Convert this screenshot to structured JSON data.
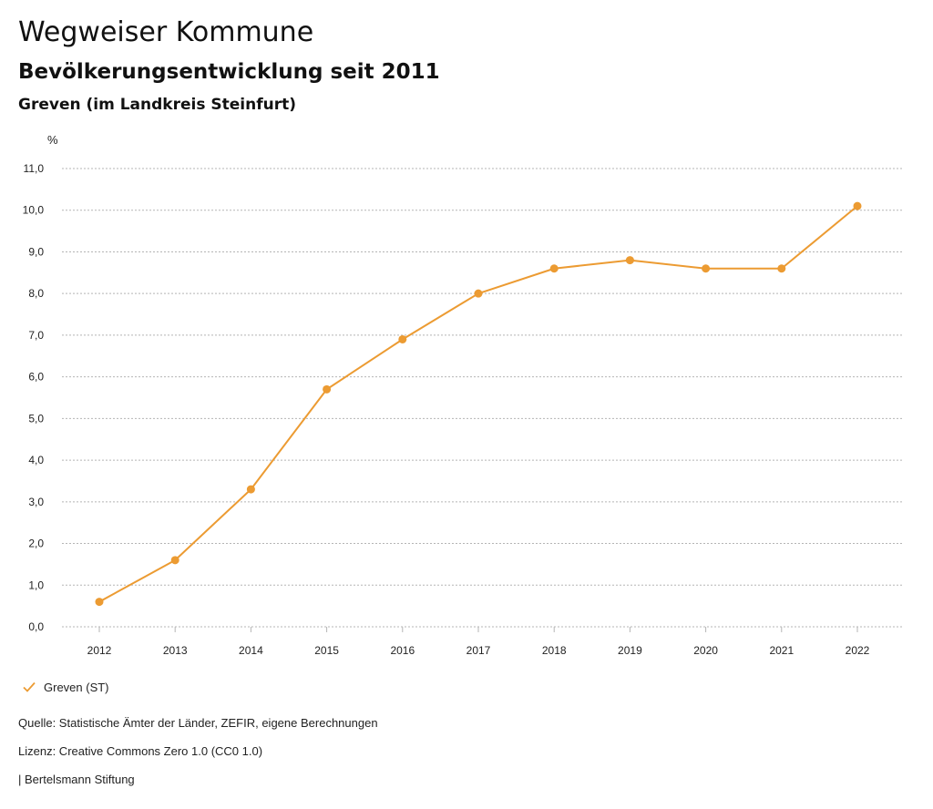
{
  "header": {
    "title": "Wegweiser Kommune",
    "subtitle": "Bevölkerungsentwicklung seit 2011",
    "region": "Greven (im Landkreis Steinfurt)"
  },
  "footer": {
    "source": "Quelle: Statistische Ämter der Länder, ZEFIR, eigene Berechnungen",
    "license": "Lizenz: Creative Commons Zero 1.0 (CC0 1.0)",
    "brand": "| Bertelsmann Stiftung"
  },
  "colors": {
    "series": "#ec9b32",
    "grid": "#b5b5b5",
    "axis_text": "#222222"
  },
  "legend_icon": "check-icon",
  "chart_data": {
    "type": "line",
    "title": "Bevölkerungsentwicklung seit 2011",
    "subtitle": "Greven (im Landkreis Steinfurt)",
    "ylabel": "%",
    "xlabel": "",
    "x": [
      "2012",
      "2013",
      "2014",
      "2015",
      "2016",
      "2017",
      "2018",
      "2019",
      "2020",
      "2021",
      "2022"
    ],
    "ylim": [
      0,
      11
    ],
    "yticks": [
      "0,0",
      "1,0",
      "2,0",
      "3,0",
      "4,0",
      "5,0",
      "6,0",
      "7,0",
      "8,0",
      "9,0",
      "10,0",
      "11,0"
    ],
    "grid": true,
    "legend_position": "bottom-left",
    "series": [
      {
        "name": "Greven (ST)",
        "values": [
          0.6,
          1.6,
          3.3,
          5.7,
          6.9,
          8.0,
          8.6,
          8.8,
          8.6,
          8.6,
          10.1
        ]
      }
    ]
  }
}
